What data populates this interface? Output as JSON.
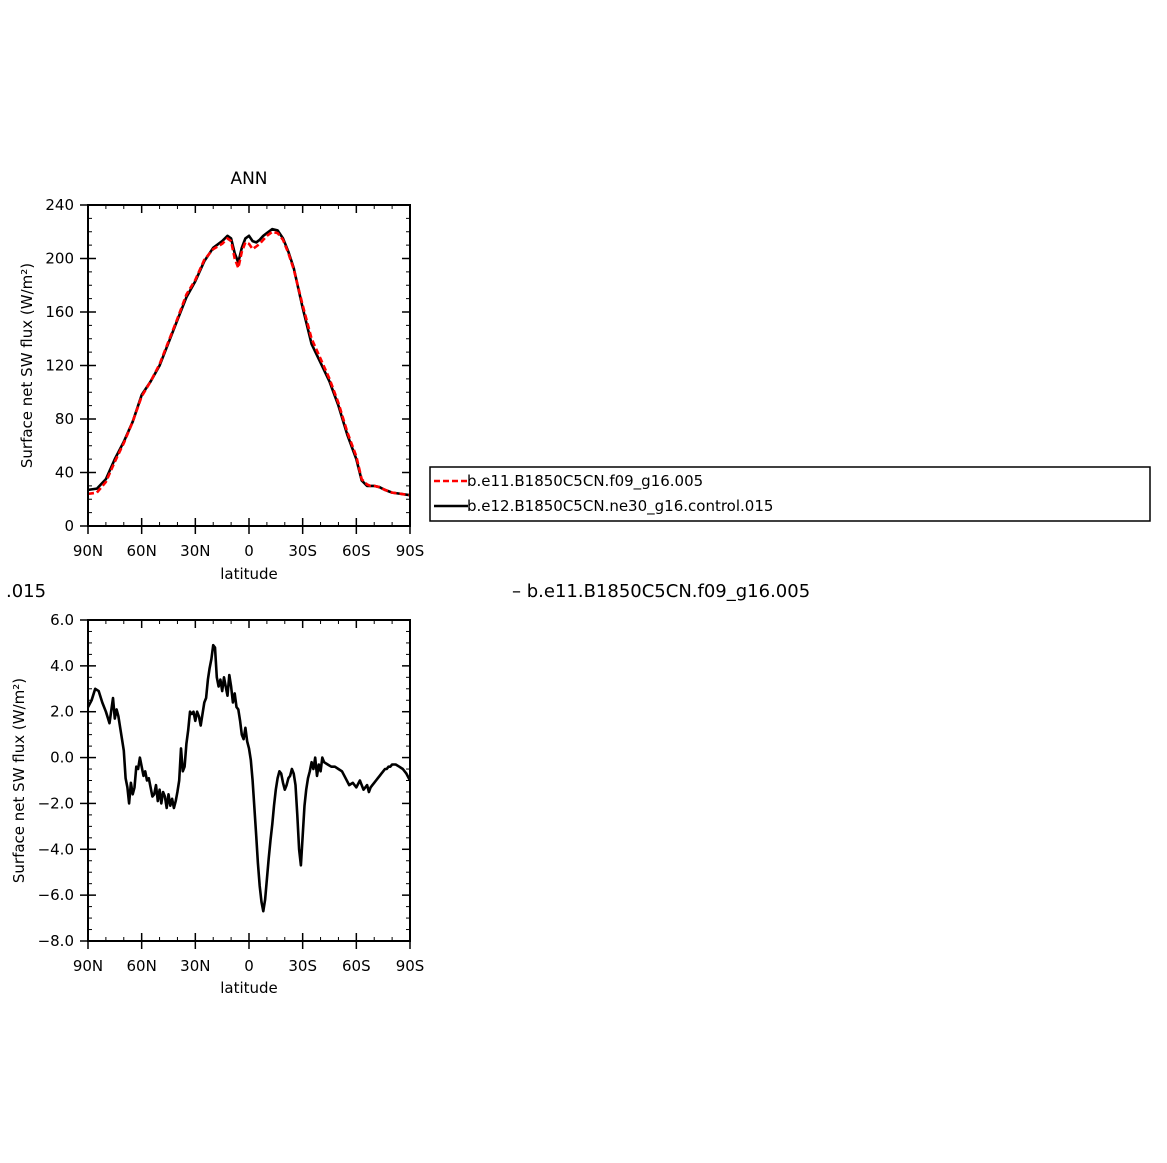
{
  "chart_data": [
    {
      "type": "line",
      "title": "ANN",
      "xlabel": "latitude",
      "ylabel": "Surface net SW flux (W/m²)",
      "xlim": [
        90,
        -90
      ],
      "ylim": [
        0,
        240
      ],
      "yticks": [
        0,
        40,
        80,
        120,
        160,
        200,
        240
      ],
      "ytick_labels": [
        "0",
        "40",
        "80",
        "120",
        "160",
        "200",
        "240"
      ],
      "xticks": [
        90,
        60,
        30,
        0,
        -30,
        -60,
        -90
      ],
      "xtick_labels": [
        "90N",
        "60N",
        "30N",
        "0",
        "30S",
        "60S",
        "90S"
      ],
      "grid": false,
      "legend": "right of chart",
      "series": [
        {
          "name": "b.e11.B1850C5CN.f09_g16.005",
          "color": "#ff0000",
          "style": "dashed",
          "x": [
            90,
            85,
            80,
            75,
            70,
            65,
            60,
            55,
            50,
            45,
            40,
            35,
            30,
            25,
            20,
            15,
            12,
            10,
            8,
            6,
            4,
            2,
            0,
            -2,
            -4,
            -6,
            -8,
            -10,
            -13,
            -16,
            -19,
            -22,
            -25,
            -30,
            -35,
            -40,
            -45,
            -50,
            -55,
            -60,
            -63,
            -66,
            -68,
            -70,
            -73,
            -76,
            -80,
            -85,
            -90
          ],
          "y": [
            24,
            25,
            33,
            48,
            62,
            78,
            97,
            108,
            121,
            138,
            155,
            173,
            184,
            199,
            207,
            211,
            215,
            213,
            200,
            193,
            205,
            212,
            211,
            207,
            209,
            211,
            214,
            217,
            220,
            219,
            214,
            204,
            192,
            165,
            140,
            125,
            110,
            92,
            70,
            52,
            35,
            31,
            30,
            30,
            29,
            27,
            25,
            24,
            23
          ]
        },
        {
          "name": "b.e12.B1850C5CN.ne30_g16.control.015",
          "color": "#000000",
          "style": "solid",
          "x": [
            90,
            85,
            80,
            75,
            70,
            65,
            60,
            55,
            50,
            45,
            40,
            35,
            30,
            25,
            20,
            15,
            12,
            10,
            8,
            6,
            4,
            2,
            0,
            -2,
            -4,
            -6,
            -8,
            -10,
            -13,
            -16,
            -19,
            -22,
            -25,
            -30,
            -35,
            -40,
            -45,
            -50,
            -55,
            -60,
            -63,
            -66,
            -68,
            -70,
            -73,
            -76,
            -80,
            -85,
            -90
          ],
          "y": [
            27,
            28,
            35,
            50,
            63,
            78,
            98,
            108,
            120,
            137,
            154,
            171,
            183,
            198,
            208,
            213,
            217,
            215,
            204,
            197,
            208,
            215,
            217,
            213,
            212,
            214,
            217,
            219,
            222,
            221,
            215,
            205,
            193,
            163,
            136,
            122,
            108,
            90,
            68,
            50,
            34,
            30,
            30,
            30,
            29,
            27,
            25,
            24,
            23
          ]
        }
      ]
    },
    {
      "type": "line",
      "title": "",
      "xlabel": "latitude",
      "ylabel": "Surface net SW flux (W/m²)",
      "xlim": [
        90,
        -90
      ],
      "ylim": [
        -8,
        6
      ],
      "yticks": [
        -8,
        -6,
        -4,
        -2,
        0,
        2,
        4,
        6
      ],
      "ytick_labels": [
        "−8.0",
        "−6.0",
        "−4.0",
        "−2.0",
        "0.0",
        "2.0",
        "4.0",
        "6.0"
      ],
      "xticks": [
        90,
        60,
        30,
        0,
        -30,
        -60,
        -90
      ],
      "xtick_labels": [
        "90N",
        "60N",
        "30N",
        "0",
        "30S",
        "60S",
        "90S"
      ],
      "grid": false,
      "series": [
        {
          "name": "",
          "color": "#000000",
          "style": "solid",
          "x": [
            90,
            88,
            86,
            84,
            82,
            80,
            78,
            76,
            75,
            74,
            73,
            72,
            71,
            70,
            69,
            68,
            67,
            66,
            65,
            64,
            63,
            62,
            61,
            60,
            59,
            58,
            57,
            56,
            55,
            54,
            53,
            52,
            51,
            50,
            49,
            48,
            47,
            46,
            45,
            44,
            43,
            42,
            41,
            40,
            39,
            38,
            37,
            36,
            35,
            34,
            33,
            32,
            31,
            30,
            29,
            28,
            27,
            26,
            25,
            24,
            23,
            22,
            21,
            20,
            19,
            18,
            17,
            16,
            15,
            14,
            13,
            12,
            11,
            10,
            9,
            8,
            7,
            6,
            5,
            4,
            3,
            2,
            1,
            0,
            -1,
            -2,
            -3,
            -4,
            -5,
            -6,
            -7,
            -8,
            -9,
            -10,
            -11,
            -12,
            -13,
            -14,
            -15,
            -16,
            -17,
            -18,
            -19,
            -20,
            -21,
            -22,
            -23,
            -24,
            -25,
            -26,
            -27,
            -28,
            -29,
            -30,
            -31,
            -32,
            -33,
            -34,
            -35,
            -36,
            -37,
            -38,
            -39,
            -40,
            -41,
            -42,
            -44,
            -46,
            -48,
            -50,
            -52,
            -54,
            -56,
            -58,
            -60,
            -62,
            -64,
            -65,
            -66,
            -67,
            -68,
            -69,
            -70,
            -71,
            -72,
            -73,
            -74,
            -75,
            -76,
            -77,
            -78,
            -79,
            -80,
            -82,
            -84,
            -86,
            -88,
            -90
          ],
          "y": [
            2.2,
            2.5,
            3.0,
            2.9,
            2.4,
            2.0,
            1.5,
            2.6,
            1.7,
            2.1,
            1.8,
            1.3,
            0.8,
            0.3,
            -0.9,
            -1.3,
            -2.0,
            -1.1,
            -1.6,
            -1.3,
            -0.4,
            -0.5,
            0.0,
            -0.4,
            -0.8,
            -0.6,
            -1.0,
            -0.9,
            -1.3,
            -1.7,
            -1.6,
            -1.2,
            -1.9,
            -1.4,
            -2.0,
            -1.5,
            -1.7,
            -2.2,
            -1.6,
            -2.1,
            -1.8,
            -2.2,
            -1.9,
            -1.5,
            -1.0,
            0.4,
            -0.6,
            -0.4,
            0.6,
            1.2,
            2.0,
            1.9,
            2.0,
            1.6,
            2.0,
            1.8,
            1.4,
            1.9,
            2.4,
            2.6,
            3.4,
            3.9,
            4.3,
            4.9,
            4.8,
            3.5,
            3.1,
            3.4,
            2.9,
            3.5,
            3.1,
            2.7,
            3.6,
            3.1,
            2.4,
            2.8,
            2.2,
            2.1,
            1.6,
            1.0,
            0.8,
            1.3,
            0.7,
            0.4,
            -0.1,
            -1.0,
            -2.2,
            -3.4,
            -4.6,
            -5.6,
            -6.3,
            -6.7,
            -6.2,
            -5.3,
            -4.4,
            -3.6,
            -2.9,
            -2.1,
            -1.4,
            -0.9,
            -0.6,
            -0.7,
            -1.1,
            -1.4,
            -1.2,
            -0.9,
            -0.8,
            -0.5,
            -0.7,
            -1.2,
            -2.5,
            -4.0,
            -4.7,
            -3.4,
            -2.1,
            -1.4,
            -0.9,
            -0.6,
            -0.2,
            -0.5,
            0.0,
            -0.8,
            -0.3,
            -0.6,
            0.0,
            -0.2,
            -0.3,
            -0.4,
            -0.4,
            -0.5,
            -0.6,
            -0.9,
            -1.2,
            -1.1,
            -1.3,
            -1.0,
            -1.4,
            -1.3,
            -1.2,
            -1.5,
            -1.3,
            -1.2,
            -1.1,
            -1.0,
            -0.9,
            -0.8,
            -0.7,
            -0.6,
            -0.5,
            -0.5,
            -0.4,
            -0.4,
            -0.3,
            -0.3,
            -0.4,
            -0.5,
            -0.7,
            -1.0
          ]
        }
      ]
    }
  ],
  "overlay_text": {
    "left_fragment": ".015",
    "right_fragment": "– b.e11.B1850C5CN.f09_g16.005"
  }
}
